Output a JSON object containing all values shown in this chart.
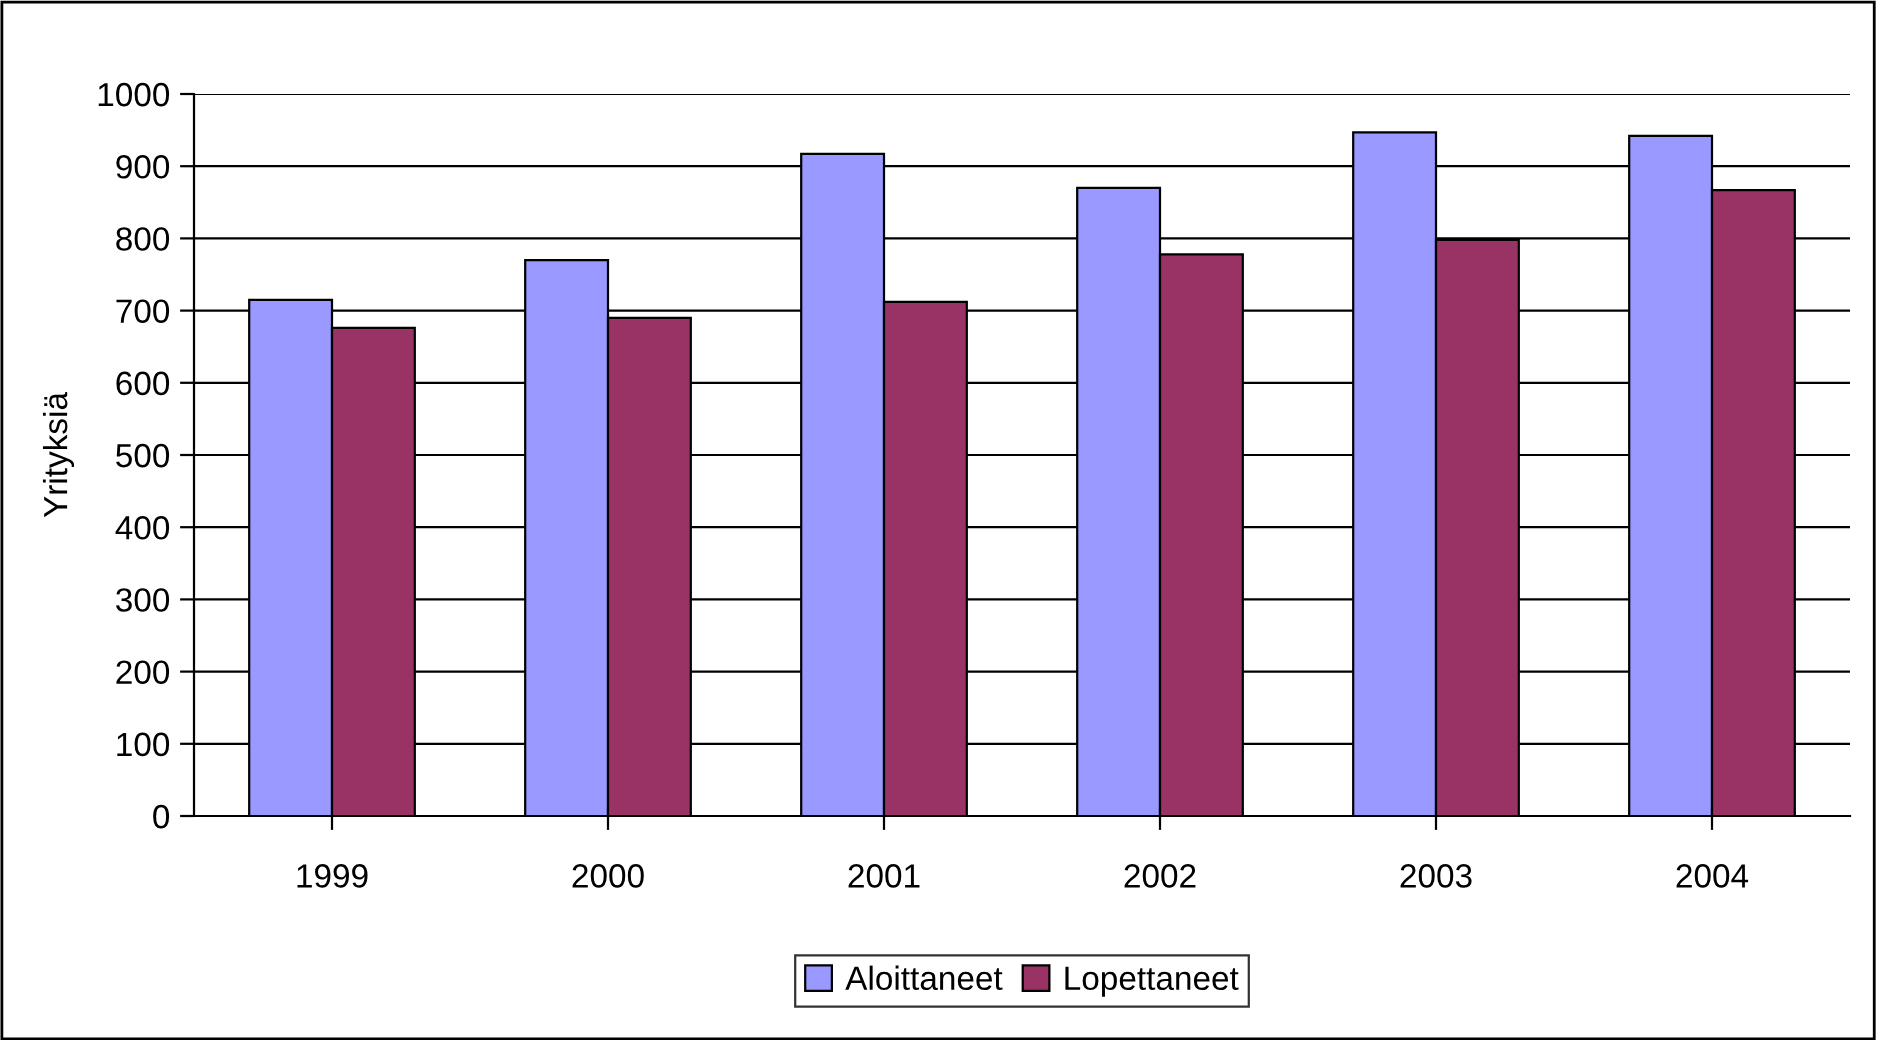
{
  "chart_data": {
    "type": "bar",
    "ylabel": "Yrityksiä",
    "categories": [
      "1999",
      "2000",
      "2001",
      "2002",
      "2003",
      "2004"
    ],
    "series": [
      {
        "name": "Aloittaneet",
        "color": "#9999ff",
        "values": [
          715,
          770,
          917,
          870,
          947,
          942
        ]
      },
      {
        "name": "Lopettaneet",
        "color": "#993366",
        "values": [
          676,
          690,
          712,
          778,
          798,
          867
        ]
      }
    ],
    "ylim": [
      0,
      1000
    ],
    "yticks": [
      0,
      100,
      200,
      300,
      400,
      500,
      600,
      700,
      800,
      900,
      1000
    ],
    "grid": "y",
    "legend": "bottom"
  }
}
